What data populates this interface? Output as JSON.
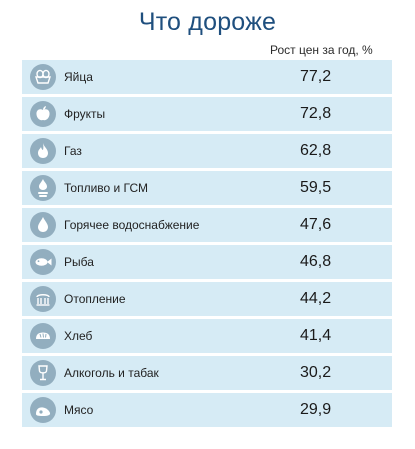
{
  "header": {
    "title": "Что дороже",
    "column_label": "Рост цен за год, %"
  },
  "rows": [
    {
      "label": "Яйца",
      "value": "77,2",
      "icon": "egg-basket-icon"
    },
    {
      "label": "Фрукты",
      "value": "72,8",
      "icon": "apple-icon"
    },
    {
      "label": "Газ",
      "value": "62,8",
      "icon": "gas-flame-icon"
    },
    {
      "label": "Топливо и ГСМ",
      "value": "59,5",
      "icon": "fuel-icon"
    },
    {
      "label": "Горячее водоснабжение",
      "value": "47,6",
      "icon": "water-drop-icon"
    },
    {
      "label": "Рыба",
      "value": "46,8",
      "icon": "fish-icon"
    },
    {
      "label": "Отопление",
      "value": "44,2",
      "icon": "radiator-icon"
    },
    {
      "label": "Хлеб",
      "value": "41,4",
      "icon": "bread-icon"
    },
    {
      "label": "Алкоголь и табак",
      "value": "30,2",
      "icon": "wine-glass-icon"
    },
    {
      "label": "Мясо",
      "value": "29,9",
      "icon": "meat-icon"
    }
  ],
  "colors": {
    "title": "#1f4f7e",
    "row_background": "#d6ebf5",
    "icon_background": "#92aebf"
  },
  "chart_data": {
    "type": "table",
    "title": "Что дороже",
    "columns": [
      "",
      "Рост цен за год, %"
    ],
    "categories": [
      "Яйца",
      "Фрукты",
      "Газ",
      "Топливо и ГСМ",
      "Горячее водоснабжение",
      "Рыба",
      "Отопление",
      "Хлеб",
      "Алкоголь и табак",
      "Мясо"
    ],
    "values": [
      77.2,
      72.8,
      62.8,
      59.5,
      47.6,
      46.8,
      44.2,
      41.4,
      30.2,
      29.9
    ]
  }
}
